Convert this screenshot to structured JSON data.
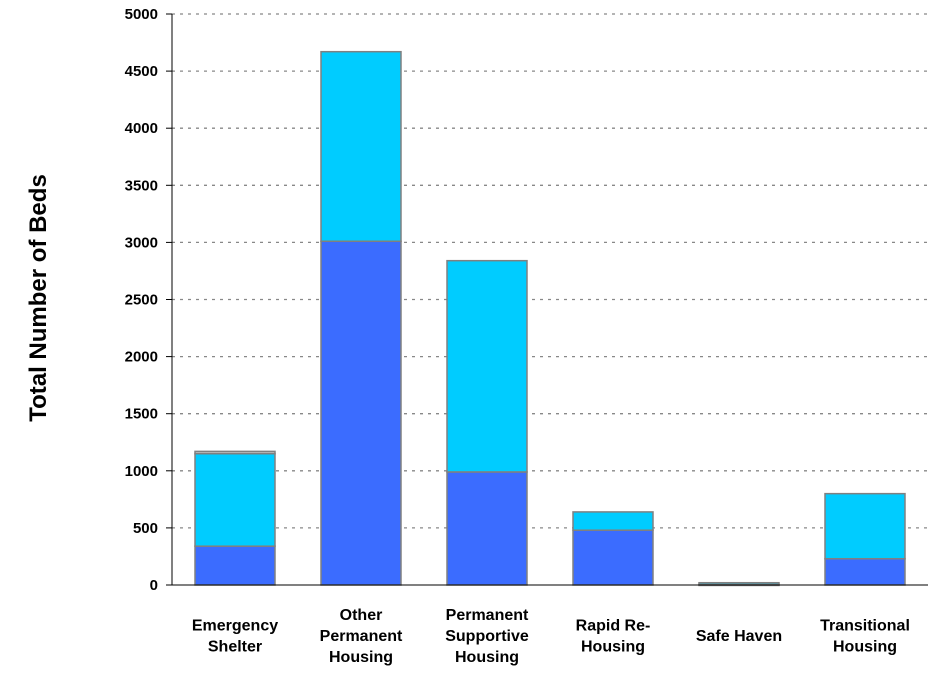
{
  "chart_data": {
    "type": "bar",
    "stacked": true,
    "categories": [
      [
        "Emergency",
        "Shelter"
      ],
      [
        "Other",
        "Permanent",
        "Housing"
      ],
      [
        "Permanent",
        "Supportive",
        "Housing"
      ],
      [
        "Rapid Re-",
        "Housing"
      ],
      [
        "Safe Haven"
      ],
      [
        "Transitional",
        "Housing"
      ]
    ],
    "series": [
      {
        "color": "#3b6cff",
        "values": [
          340,
          3010,
          990,
          480,
          5,
          230
        ]
      },
      {
        "color": "#00ccff",
        "values": [
          810,
          1660,
          1850,
          160,
          15,
          570
        ]
      },
      {
        "color": "#c0c0c0",
        "values": [
          20,
          0,
          0,
          0,
          0,
          0
        ]
      }
    ],
    "xlabel": "",
    "ylabel": "Total Number of Beds",
    "ylim": [
      0,
      5000
    ],
    "yticks": [
      0,
      500,
      1000,
      1500,
      2000,
      2500,
      3000,
      3500,
      4000,
      4500,
      5000
    ],
    "grid": true,
    "legend": "none",
    "colors": {
      "border": "#808080",
      "grid": "#888888",
      "axis": "#000000"
    }
  }
}
